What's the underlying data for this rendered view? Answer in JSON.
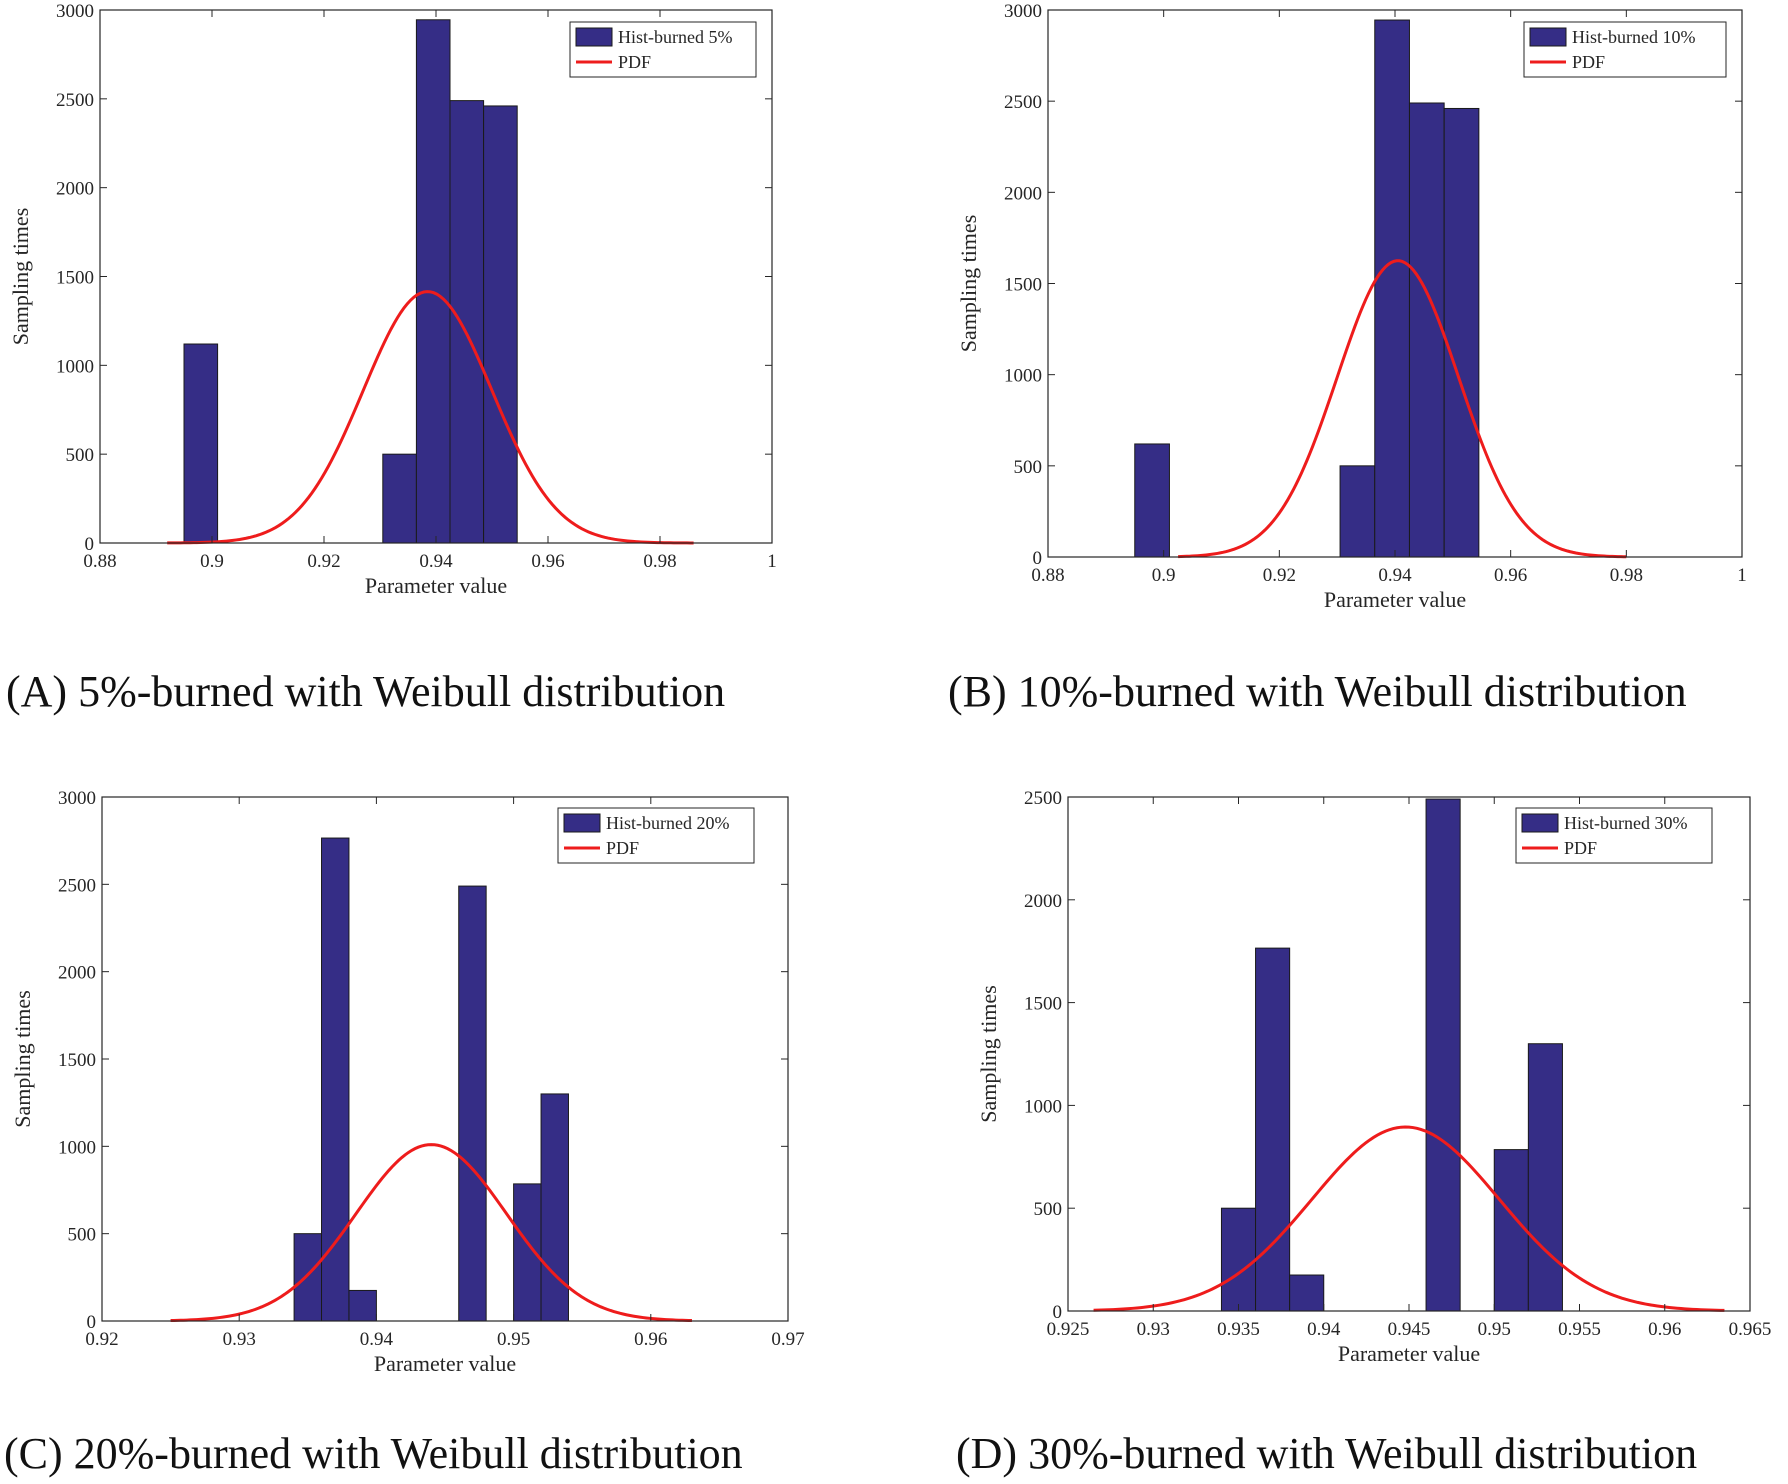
{
  "colors": {
    "bar": "#352d86",
    "bar_edge": "#1a1a1a",
    "pdf": "#ee1c1c",
    "axis": "#262626"
  },
  "captions": [
    "(A)  5%-burned with Weibull distribution",
    "(B)  10%-burned with Weibull distribution",
    "(C)  20%-burned with Weibull distribution",
    "(D)  30%-burned with Weibull distribution"
  ],
  "chart_data": [
    {
      "type": "bar",
      "xlabel": "Parameter value",
      "ylabel": "Sampling times",
      "xlim": [
        0.88,
        1.0
      ],
      "ylim": [
        0,
        3000
      ],
      "xticks": [
        0.88,
        0.9,
        0.92,
        0.94,
        0.96,
        0.98,
        1
      ],
      "xtick_labels": [
        "0.88",
        "0.9",
        "0.92",
        "0.94",
        "0.96",
        "0.98",
        "1"
      ],
      "yticks": [
        0,
        500,
        1000,
        1500,
        2000,
        2500,
        3000
      ],
      "legend": {
        "position": "top-right",
        "entries": [
          "Hist-burned 5%",
          "PDF"
        ]
      },
      "bins": [
        {
          "x0": 0.895,
          "x1": 0.901,
          "count": 1120
        },
        {
          "x0": 0.9305,
          "x1": 0.9365,
          "count": 500
        },
        {
          "x0": 0.9365,
          "x1": 0.9425,
          "count": 2945
        },
        {
          "x0": 0.9425,
          "x1": 0.9485,
          "count": 2490
        },
        {
          "x0": 0.9485,
          "x1": 0.9545,
          "count": 2460
        }
      ],
      "pdf": {
        "x_range": [
          0.892,
          0.986
        ],
        "peak_x": 0.9385,
        "peak_y": 1415,
        "sigma": 0.0115
      }
    },
    {
      "type": "bar",
      "xlabel": "Parameter value",
      "ylabel": "Sampling times",
      "xlim": [
        0.88,
        1.0
      ],
      "ylim": [
        0,
        3000
      ],
      "xticks": [
        0.88,
        0.9,
        0.92,
        0.94,
        0.96,
        0.98,
        1
      ],
      "xtick_labels": [
        "0.88",
        "0.9",
        "0.92",
        "0.94",
        "0.96",
        "0.98",
        "1"
      ],
      "yticks": [
        0,
        500,
        1000,
        1500,
        2000,
        2500,
        3000
      ],
      "legend": {
        "position": "top-right",
        "entries": [
          "Hist-burned 10%",
          "PDF"
        ]
      },
      "bins": [
        {
          "x0": 0.895,
          "x1": 0.901,
          "count": 620
        },
        {
          "x0": 0.9305,
          "x1": 0.9365,
          "count": 500
        },
        {
          "x0": 0.9365,
          "x1": 0.9425,
          "count": 2945
        },
        {
          "x0": 0.9425,
          "x1": 0.9485,
          "count": 2490
        },
        {
          "x0": 0.9485,
          "x1": 0.9545,
          "count": 2460
        }
      ],
      "pdf": {
        "x_range": [
          0.9025,
          0.98
        ],
        "peak_x": 0.9405,
        "peak_y": 1625,
        "sigma": 0.0105
      }
    },
    {
      "type": "bar",
      "xlabel": "Parameter value",
      "ylabel": "Sampling times",
      "xlim": [
        0.92,
        0.97
      ],
      "ylim": [
        0,
        3000
      ],
      "xticks": [
        0.92,
        0.93,
        0.94,
        0.95,
        0.96,
        0.97
      ],
      "xtick_labels": [
        "0.92",
        "0.93",
        "0.94",
        "0.95",
        "0.96",
        "0.97"
      ],
      "yticks": [
        0,
        500,
        1000,
        1500,
        2000,
        2500,
        3000
      ],
      "legend": {
        "position": "top-right",
        "entries": [
          "Hist-burned 20%",
          "PDF"
        ]
      },
      "bins": [
        {
          "x0": 0.934,
          "x1": 0.936,
          "count": 500
        },
        {
          "x0": 0.936,
          "x1": 0.938,
          "count": 2765
        },
        {
          "x0": 0.938,
          "x1": 0.94,
          "count": 175
        },
        {
          "x0": 0.946,
          "x1": 0.948,
          "count": 2490
        },
        {
          "x0": 0.95,
          "x1": 0.952,
          "count": 785
        },
        {
          "x0": 0.952,
          "x1": 0.954,
          "count": 1300
        }
      ],
      "pdf": {
        "x_range": [
          0.925,
          0.963
        ],
        "peak_x": 0.944,
        "peak_y": 1010,
        "sigma": 0.0055
      }
    },
    {
      "type": "bar",
      "xlabel": "Parameter value",
      "ylabel": "Sampling times",
      "xlim": [
        0.925,
        0.965
      ],
      "ylim": [
        0,
        2500
      ],
      "xticks": [
        0.925,
        0.93,
        0.935,
        0.94,
        0.945,
        0.95,
        0.955,
        0.96,
        0.965
      ],
      "xtick_labels": [
        "0.925",
        "0.93",
        "0.935",
        "0.94",
        "0.945",
        "0.95",
        "0.955",
        "0.96",
        "0.965"
      ],
      "yticks": [
        0,
        500,
        1000,
        1500,
        2000,
        2500
      ],
      "legend": {
        "position": "top-right",
        "entries": [
          "Hist-burned 30%",
          "PDF"
        ]
      },
      "bins": [
        {
          "x0": 0.934,
          "x1": 0.936,
          "count": 500
        },
        {
          "x0": 0.936,
          "x1": 0.938,
          "count": 1765
        },
        {
          "x0": 0.938,
          "x1": 0.94,
          "count": 175
        },
        {
          "x0": 0.946,
          "x1": 0.948,
          "count": 2490
        },
        {
          "x0": 0.95,
          "x1": 0.952,
          "count": 785
        },
        {
          "x0": 0.952,
          "x1": 0.954,
          "count": 1300
        }
      ],
      "pdf": {
        "x_range": [
          0.9265,
          0.9635
        ],
        "peak_x": 0.9448,
        "peak_y": 895,
        "sigma": 0.0055
      }
    }
  ]
}
